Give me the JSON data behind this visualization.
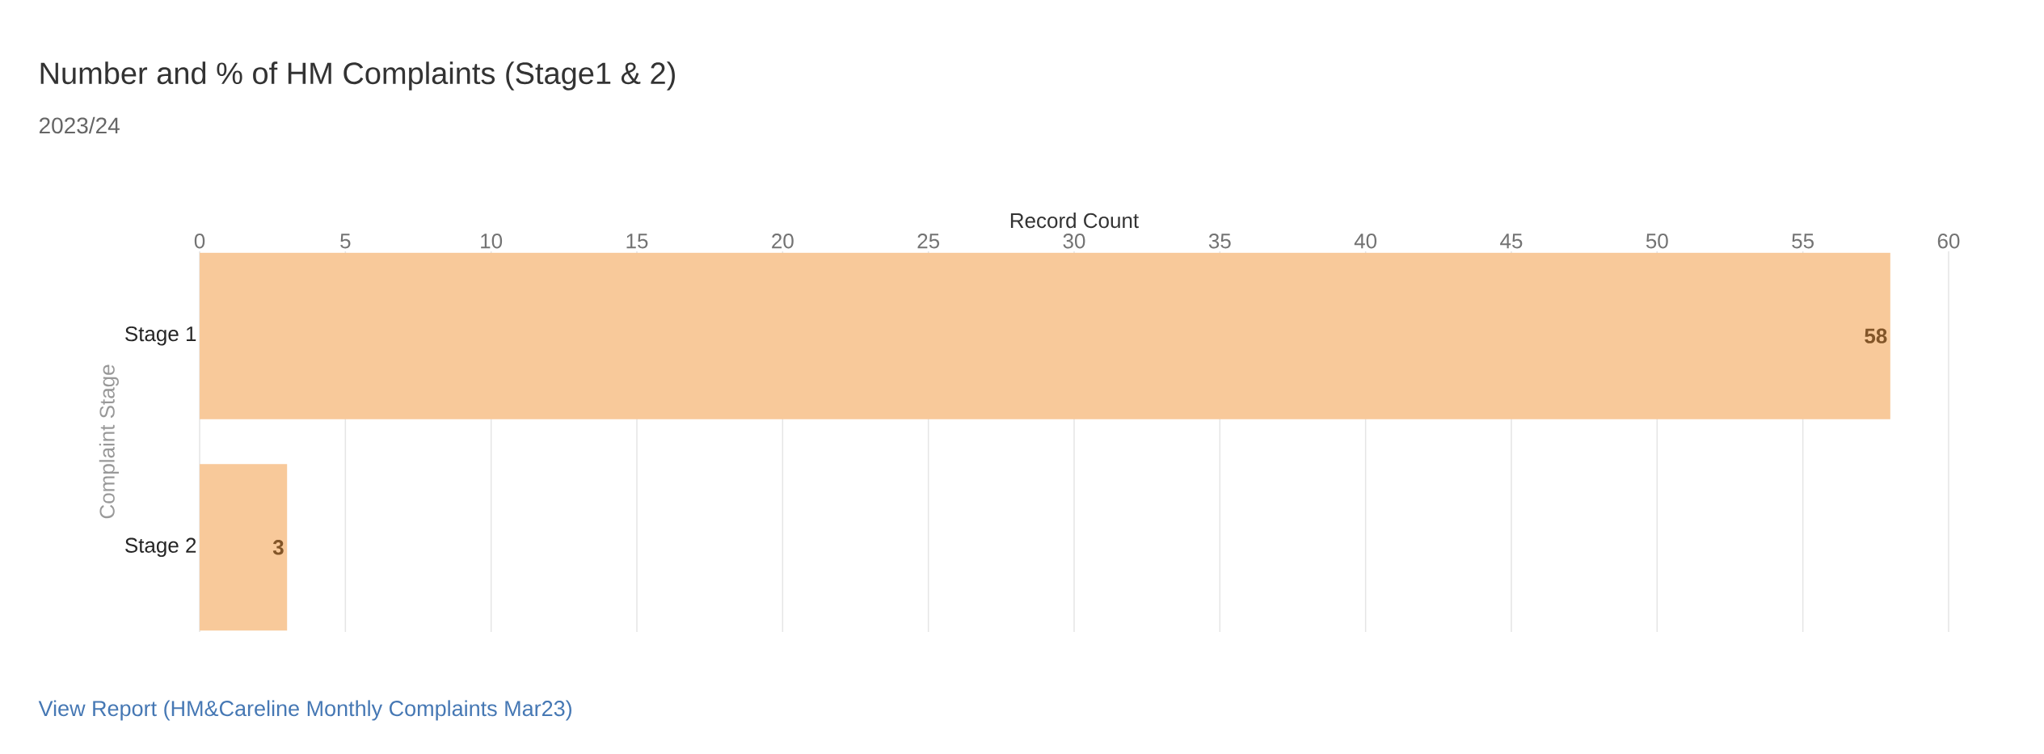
{
  "chart_data": {
    "type": "bar",
    "orientation": "horizontal",
    "title": "Number and % of HM Complaints (Stage1 & 2)",
    "subtitle": "2023/24",
    "xlabel": "Record Count",
    "ylabel": "Complaint Stage",
    "categories": [
      "Stage 1",
      "Stage 2"
    ],
    "values": [
      58,
      3
    ],
    "color": "#f8c99a",
    "xlim": [
      0,
      60
    ],
    "xticks": [
      0,
      5,
      10,
      15,
      20,
      25,
      30,
      35,
      40,
      45,
      50,
      55,
      60
    ],
    "grid": "x",
    "data_labels": true,
    "annotations": [
      "View Report (HM&Careline Monthly Complaints Mar23)"
    ]
  }
}
